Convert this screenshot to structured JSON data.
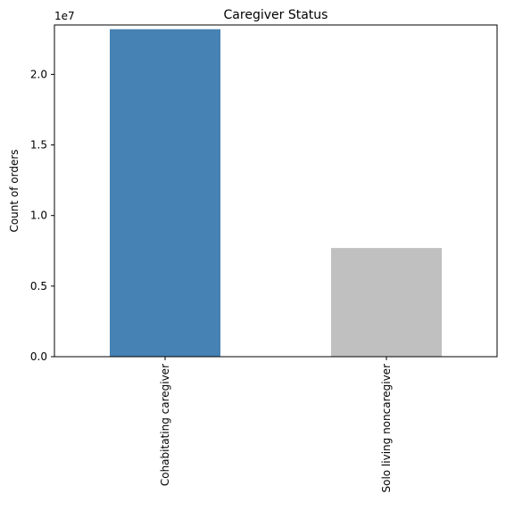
{
  "chart_data": {
    "type": "bar",
    "title": "Caregiver Status",
    "xlabel": "",
    "ylabel": "Count of orders",
    "offset_label": "1e7",
    "categories": [
      "Cohabitating caregiver",
      "Solo living noncaregiver"
    ],
    "values": [
      23200000,
      7700000
    ],
    "colors": [
      "#4682b4",
      "#c0c0c0"
    ],
    "ylim": [
      0,
      23500000
    ],
    "yticks": [
      0,
      5000000,
      10000000,
      15000000,
      20000000
    ],
    "ytick_labels": [
      "0.0",
      "0.5",
      "1.0",
      "1.5",
      "2.0"
    ],
    "grid": false,
    "legend": "none"
  }
}
